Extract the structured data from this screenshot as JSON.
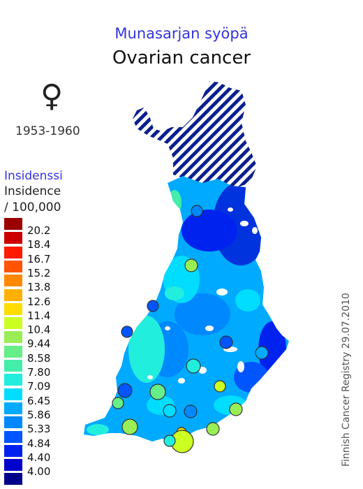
{
  "title_fi": "Munasarjan syöpä",
  "title_en": "Ovarian cancer",
  "sex_symbol": "♀",
  "period": "1953-1960",
  "legend": {
    "heading_fi": "Insidenssi",
    "heading_en": "Insidence",
    "unit": "/ 100,000",
    "items": [
      {
        "label": "20.2",
        "color": "#9a0000"
      },
      {
        "label": "18.4",
        "color": "#cc0000"
      },
      {
        "label": "16.7",
        "color": "#ff1a00"
      },
      {
        "label": "15.2",
        "color": "#ff5500"
      },
      {
        "label": "13.8",
        "color": "#ff8800"
      },
      {
        "label": "12.6",
        "color": "#ffb000"
      },
      {
        "label": "11.4",
        "color": "#ffdd00"
      },
      {
        "label": "10.4",
        "color": "#ccff22"
      },
      {
        "label": "9.44",
        "color": "#99ee55"
      },
      {
        "label": "8.58",
        "color": "#66ee88"
      },
      {
        "label": "7.80",
        "color": "#44eeaa"
      },
      {
        "label": "7.09",
        "color": "#22eedd"
      },
      {
        "label": "6.45",
        "color": "#00ddff"
      },
      {
        "label": "5.86",
        "color": "#00aaff"
      },
      {
        "label": "5.33",
        "color": "#0088ff"
      },
      {
        "label": "4.84",
        "color": "#0055ff"
      },
      {
        "label": "4.40",
        "color": "#0022ee"
      },
      {
        "label": "4.00",
        "color": "#0000cc"
      },
      {
        "label": "",
        "color": "#00008a"
      }
    ]
  },
  "registry_note": "Finnish Cancer Registry 29.07.2010"
}
